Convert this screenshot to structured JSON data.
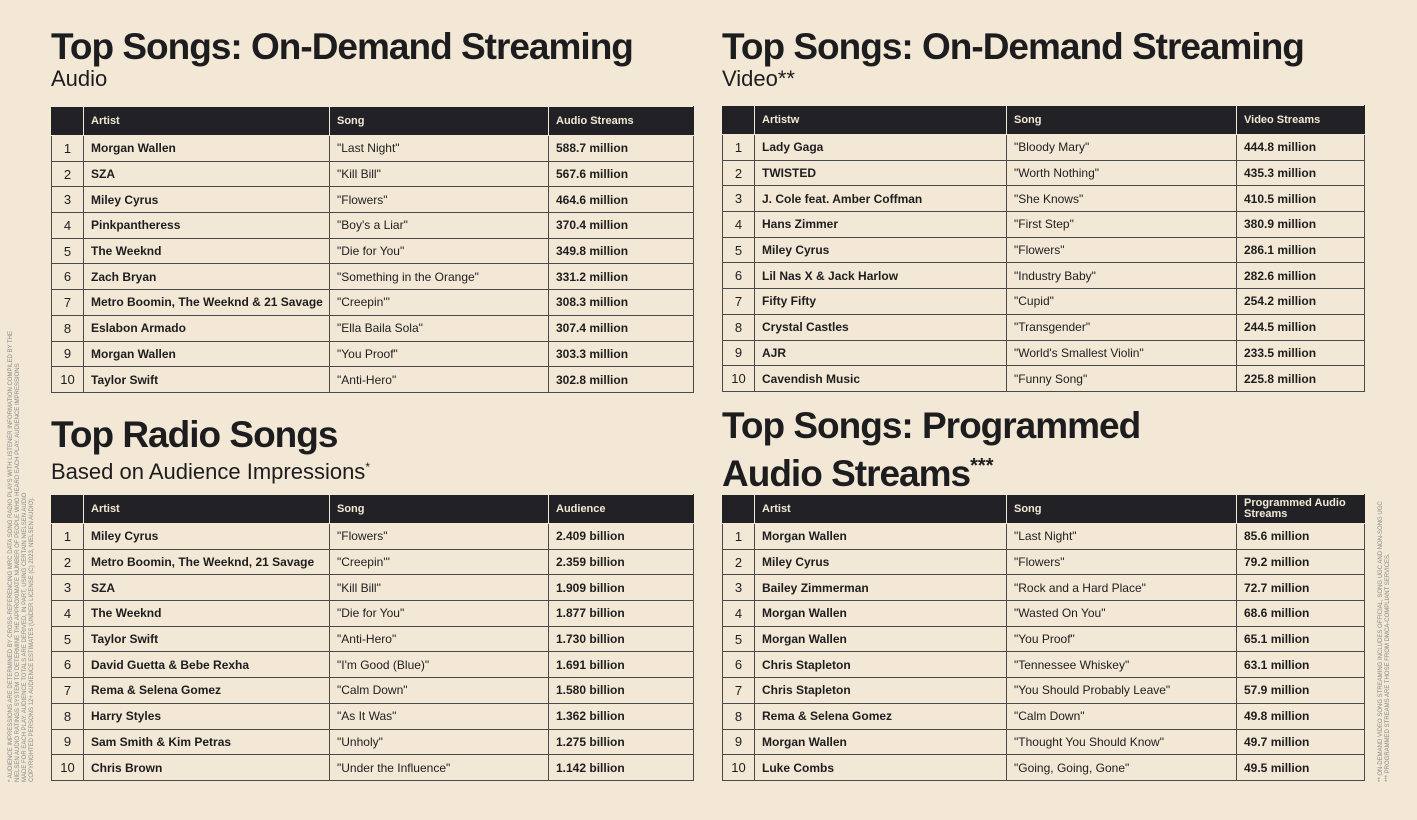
{
  "sections": [
    {
      "title": "Top Songs: On-Demand Streaming",
      "title_sup": "",
      "subtitle": "Audio",
      "subtitle_sup": "",
      "headers": [
        "",
        "Artist",
        "Song",
        "Audio Streams"
      ],
      "rows": [
        {
          "rank": "1",
          "artist": "Morgan Wallen",
          "song": "\"Last Night\"",
          "value": "588.7 million"
        },
        {
          "rank": "2",
          "artist": "SZA",
          "song": "\"Kill Bill\"",
          "value": "567.6 million"
        },
        {
          "rank": "3",
          "artist": "Miley Cyrus",
          "song": "\"Flowers\"",
          "value": "464.6 million"
        },
        {
          "rank": "4",
          "artist": "Pinkpantheress",
          "song": "\"Boy's a Liar\"",
          "value": "370.4 million"
        },
        {
          "rank": "5",
          "artist": "The Weeknd",
          "song": "\"Die for You\"",
          "value": "349.8 million"
        },
        {
          "rank": "6",
          "artist": "Zach Bryan",
          "song": "\"Something in the Orange\"",
          "value": "331.2 million"
        },
        {
          "rank": "7",
          "artist": "Metro Boomin, The Weeknd & 21 Savage",
          "song": "\"Creepin'\"",
          "value": "308.3 million"
        },
        {
          "rank": "8",
          "artist": "Eslabon Armado",
          "song": "\"Ella Baila Sola\"",
          "value": "307.4 million"
        },
        {
          "rank": "9",
          "artist": "Morgan Wallen",
          "song": "\"You Proof\"",
          "value": "303.3 million"
        },
        {
          "rank": "10",
          "artist": "Taylor Swift",
          "song": "\"Anti-Hero\"",
          "value": "302.8 million"
        }
      ]
    },
    {
      "title": "Top Songs: On-Demand Streaming",
      "title_sup": "",
      "subtitle": "Video**",
      "subtitle_sup": "",
      "headers": [
        "",
        "Artistw",
        "Song",
        "Video Streams"
      ],
      "rows": [
        {
          "rank": "1",
          "artist": "Lady Gaga",
          "song": "\"Bloody Mary\"",
          "value": "444.8 million"
        },
        {
          "rank": "2",
          "artist": "TWISTED",
          "song": "\"Worth Nothing\"",
          "value": "435.3 million"
        },
        {
          "rank": "3",
          "artist": "J. Cole feat. Amber Coffman",
          "song": "\"She Knows\"",
          "value": "410.5 million"
        },
        {
          "rank": "4",
          "artist": "Hans Zimmer",
          "song": "\"First Step\"",
          "value": "380.9 million"
        },
        {
          "rank": "5",
          "artist": "Miley Cyrus",
          "song": "\"Flowers\"",
          "value": "286.1 million"
        },
        {
          "rank": "6",
          "artist": "Lil Nas X & Jack Harlow",
          "song": "\"Industry Baby\"",
          "value": "282.6 million"
        },
        {
          "rank": "7",
          "artist": "Fifty Fifty",
          "song": "\"Cupid\"",
          "value": "254.2 million"
        },
        {
          "rank": "8",
          "artist": "Crystal Castles",
          "song": "\"Transgender\"",
          "value": "244.5 million"
        },
        {
          "rank": "9",
          "artist": "AJR",
          "song": "\"World's Smallest Violin\"",
          "value": "233.5 million"
        },
        {
          "rank": "10",
          "artist": "Cavendish Music",
          "song": "\"Funny Song\"",
          "value": "225.8 million"
        }
      ]
    },
    {
      "title": "Top Radio Songs",
      "title_sup": "",
      "subtitle": "Based on Audience Impressions",
      "subtitle_sup": "*",
      "headers": [
        "",
        "Artist",
        "Song",
        "Audience"
      ],
      "rows": [
        {
          "rank": "1",
          "artist": "Miley Cyrus",
          "song": "\"Flowers\"",
          "value": "2.409 billion"
        },
        {
          "rank": "2",
          "artist": "Metro Boomin, The Weeknd, 21 Savage",
          "song": "\"Creepin'\"",
          "value": "2.359 billion"
        },
        {
          "rank": "3",
          "artist": "SZA",
          "song": "\"Kill Bill\"",
          "value": "1.909 billion"
        },
        {
          "rank": "4",
          "artist": "The Weeknd",
          "song": "\"Die for You\"",
          "value": "1.877 billion"
        },
        {
          "rank": "5",
          "artist": "Taylor Swift",
          "song": "\"Anti-Hero\"",
          "value": "1.730 billion"
        },
        {
          "rank": "6",
          "artist": "David Guetta & Bebe Rexha",
          "song": "\"I'm Good (Blue)\"",
          "value": "1.691 billion"
        },
        {
          "rank": "7",
          "artist": "Rema & Selena Gomez",
          "song": "\"Calm Down\"",
          "value": "1.580 billion"
        },
        {
          "rank": "8",
          "artist": "Harry Styles",
          "song": "\"As It Was\"",
          "value": "1.362 billion"
        },
        {
          "rank": "9",
          "artist": "Sam Smith & Kim Petras",
          "song": "\"Unholy\"",
          "value": "1.275 billion"
        },
        {
          "rank": "10",
          "artist": "Chris Brown",
          "song": "\"Under the Influence\"",
          "value": "1.142 billion"
        }
      ]
    },
    {
      "title": "Top Songs: Programmed",
      "title2": "Audio Streams",
      "title_sup": "***",
      "subtitle": "",
      "subtitle_sup": "",
      "headers": [
        "",
        "Artist",
        "Song",
        "Programmed Audio Streams"
      ],
      "rows": [
        {
          "rank": "1",
          "artist": "Morgan Wallen",
          "song": "\"Last Night\"",
          "value": "85.6 million"
        },
        {
          "rank": "2",
          "artist": "Miley Cyrus",
          "song": "\"Flowers\"",
          "value": "79.2 million"
        },
        {
          "rank": "3",
          "artist": "Bailey Zimmerman",
          "song": "\"Rock and a Hard Place\"",
          "value": "72.7 million"
        },
        {
          "rank": "4",
          "artist": "Morgan Wallen",
          "song": "\"Wasted On You\"",
          "value": "68.6 million"
        },
        {
          "rank": "5",
          "artist": "Morgan Wallen",
          "song": "\"You Proof\"",
          "value": "65.1 million"
        },
        {
          "rank": "6",
          "artist": "Chris Stapleton",
          "song": "\"Tennessee Whiskey\"",
          "value": "63.1 million"
        },
        {
          "rank": "7",
          "artist": "Chris Stapleton",
          "song": "\"You Should Probably Leave\"",
          "value": "57.9 million"
        },
        {
          "rank": "8",
          "artist": "Rema & Selena Gomez",
          "song": "\"Calm Down\"",
          "value": "49.8 million"
        },
        {
          "rank": "9",
          "artist": "Morgan Wallen",
          "song": "\"Thought You Should Know\"",
          "value": "49.7 million"
        },
        {
          "rank": "10",
          "artist": "Luke Combs",
          "song": "\"Going, Going, Gone\"",
          "value": "49.5 million"
        }
      ]
    }
  ],
  "footnotes": {
    "left": [
      "* AUDIENCE IMPRESSIONS ARE DETERMINED BY CROSS-REFERENCING MRC DATA SONG RADIO PLAYS WITH LISTENER INFORMATION COMPILED BY THE",
      "NIELSEN AUDIO RATINGS SYSTEM TO DETERMINE THE APPROXIMATE NUMBER OF PEOPLE WHO HEARD EACH PLAY. AUDIENCE IMPRESSIONS",
      "MADE FOR EACH PLAY. AUDIENCE TOTALS ARE DERIVED, IN PART, USING CERTAIN NIELSEN AUDIO",
      "COPYRIGHTED PERSONS 12+ AUDIENCE ESTIMATES (UNDER LICENSE (C) 2023, NIELSEN AUDIO)."
    ],
    "right": [
      "** ON-DEMAND VIDEO SONG STREAMING INCLUDES OFFICIAL, SONG UGC AND NON-SONG UGC",
      "*** PROGRAMMED STREAMS ARE THOSE FROM DMCA-COMPLIANT SERVICES."
    ]
  }
}
